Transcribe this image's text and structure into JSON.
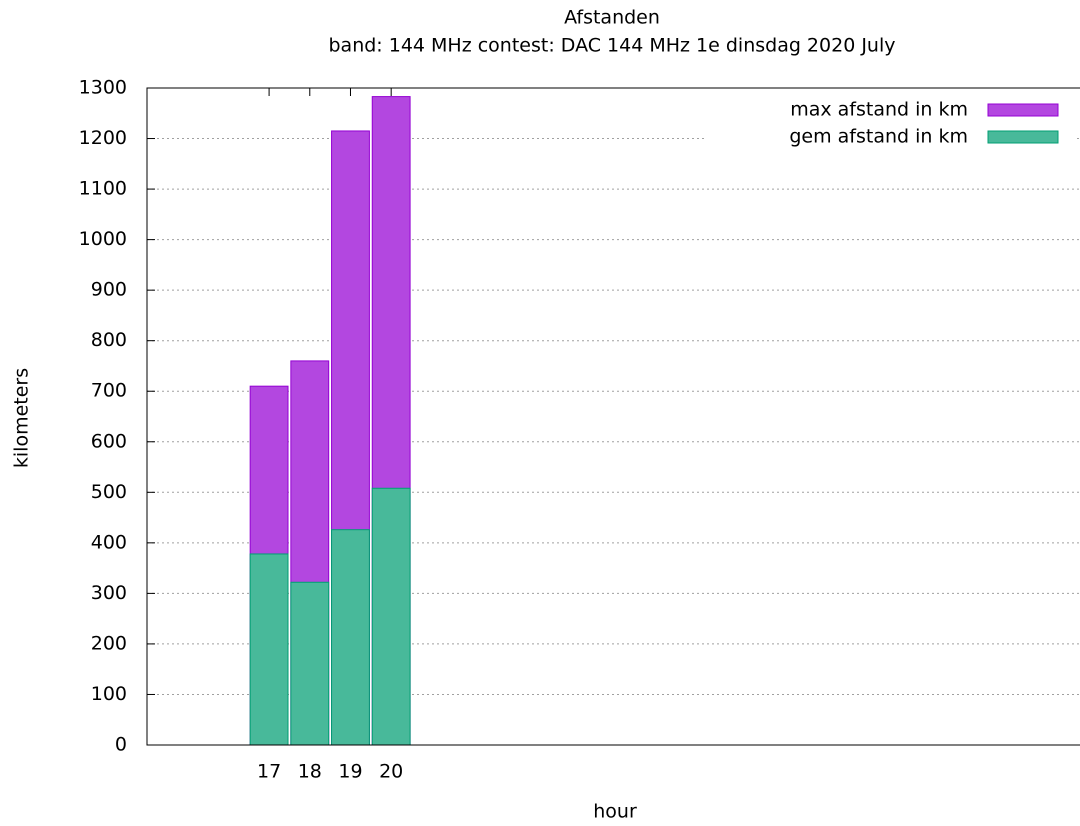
{
  "chart_data": {
    "type": "bar",
    "title": "Afstanden",
    "subtitle": "band: 144 MHz  contest: DAC 144 MHz 1e dinsdag 2020 July",
    "x_label": "hour",
    "y_label": "kilometers",
    "x": [
      17,
      18,
      19,
      20
    ],
    "series": [
      {
        "name": "max afstand in km",
        "color": "#b347e0",
        "values": [
          710,
          760,
          1215,
          1283
        ]
      },
      {
        "name": "gem afstand in km",
        "color": "#48b99a",
        "values": [
          378,
          322,
          426,
          508
        ]
      }
    ],
    "xlim": [
      14,
      37
    ],
    "xticks": [
      17,
      18,
      19,
      20
    ],
    "ylim": [
      0,
      1300
    ],
    "yticks": [
      0,
      100,
      200,
      300,
      400,
      500,
      600,
      700,
      800,
      900,
      1000,
      1100,
      1200,
      1300
    ],
    "grid": true,
    "legend": "top-right"
  }
}
